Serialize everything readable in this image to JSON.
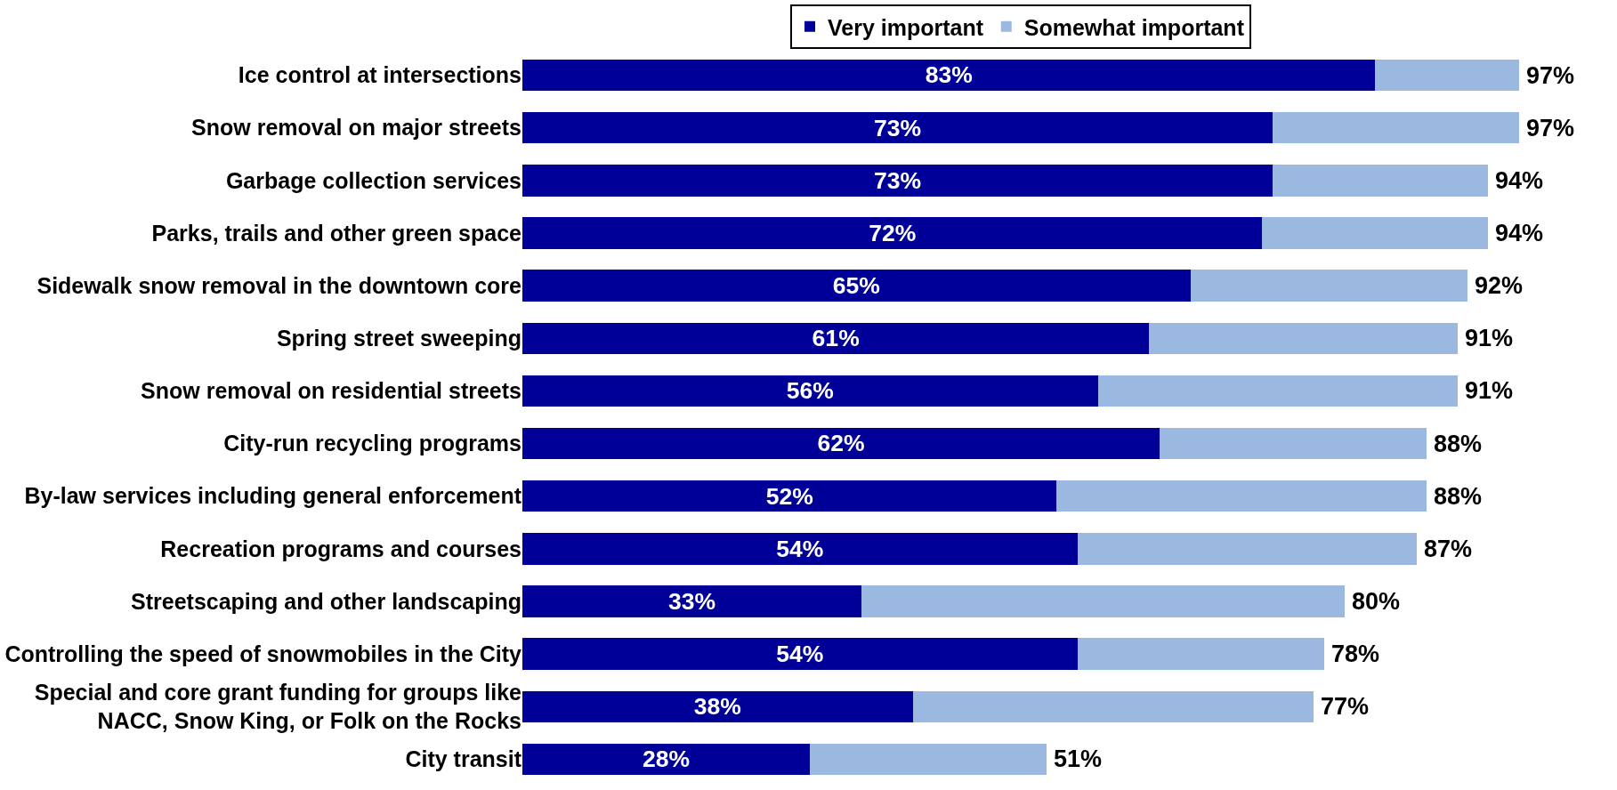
{
  "chart_data": {
    "type": "bar",
    "orientation": "horizontal",
    "stacked": true,
    "legend": "top",
    "categories": [
      "Ice control at intersections",
      "Snow removal on major streets",
      "Garbage collection services",
      "Parks, trails and other green space",
      "Sidewalk snow removal in the downtown core",
      "Spring street sweeping",
      "Snow removal on residential streets",
      "City-run recycling programs",
      "By-law services including general enforcement",
      "Recreation programs and courses",
      "Streetscaping and other landscaping",
      "Controlling the speed of snowmobiles in the City",
      "Special and core grant funding for groups like\nNACC, Snow King, or Folk on the Rocks",
      "City transit"
    ],
    "series": [
      {
        "name": "Very important",
        "color": "#000099",
        "values": [
          83,
          73,
          73,
          72,
          65,
          61,
          56,
          62,
          52,
          54,
          33,
          54,
          38,
          28
        ],
        "value_labels": [
          "83%",
          "73%",
          "73%",
          "72%",
          "65%",
          "61%",
          "56%",
          "62%",
          "52%",
          "54%",
          "33%",
          "54%",
          "38%",
          "28%"
        ]
      },
      {
        "name": "Somewhat important",
        "color": "#9bb9e0",
        "values": [
          14,
          24,
          21,
          22,
          27,
          30,
          35,
          26,
          36,
          33,
          47,
          24,
          39,
          23
        ]
      }
    ],
    "totals": [
      "97%",
      "97%",
      "94%",
      "94%",
      "92%",
      "91%",
      "91%",
      "88%",
      "88%",
      "87%",
      "80%",
      "78%",
      "77%",
      "51%"
    ]
  }
}
